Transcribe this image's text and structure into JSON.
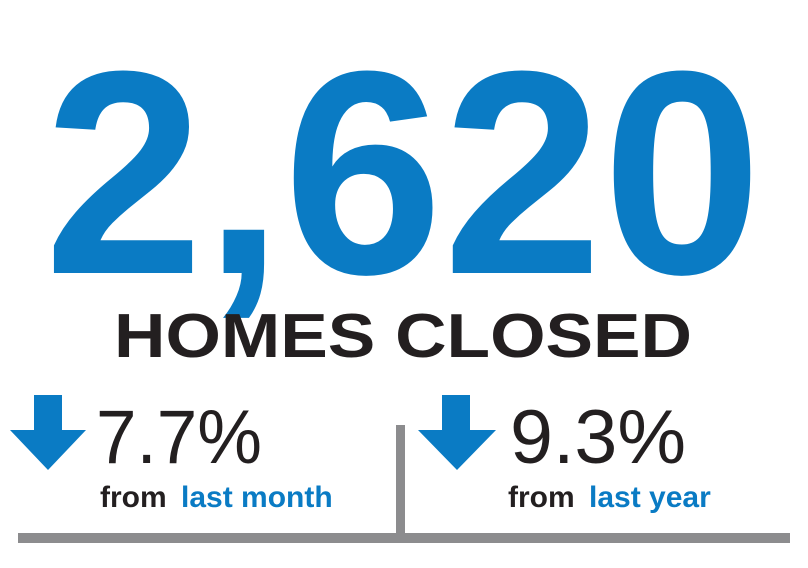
{
  "headline": {
    "value": "2,620",
    "label": "HOMES CLOSED"
  },
  "stats": [
    {
      "value": "7.7%",
      "prefix": "from",
      "period": "last month"
    },
    {
      "value": "9.3%",
      "prefix": "from",
      "period": "last year"
    }
  ]
}
